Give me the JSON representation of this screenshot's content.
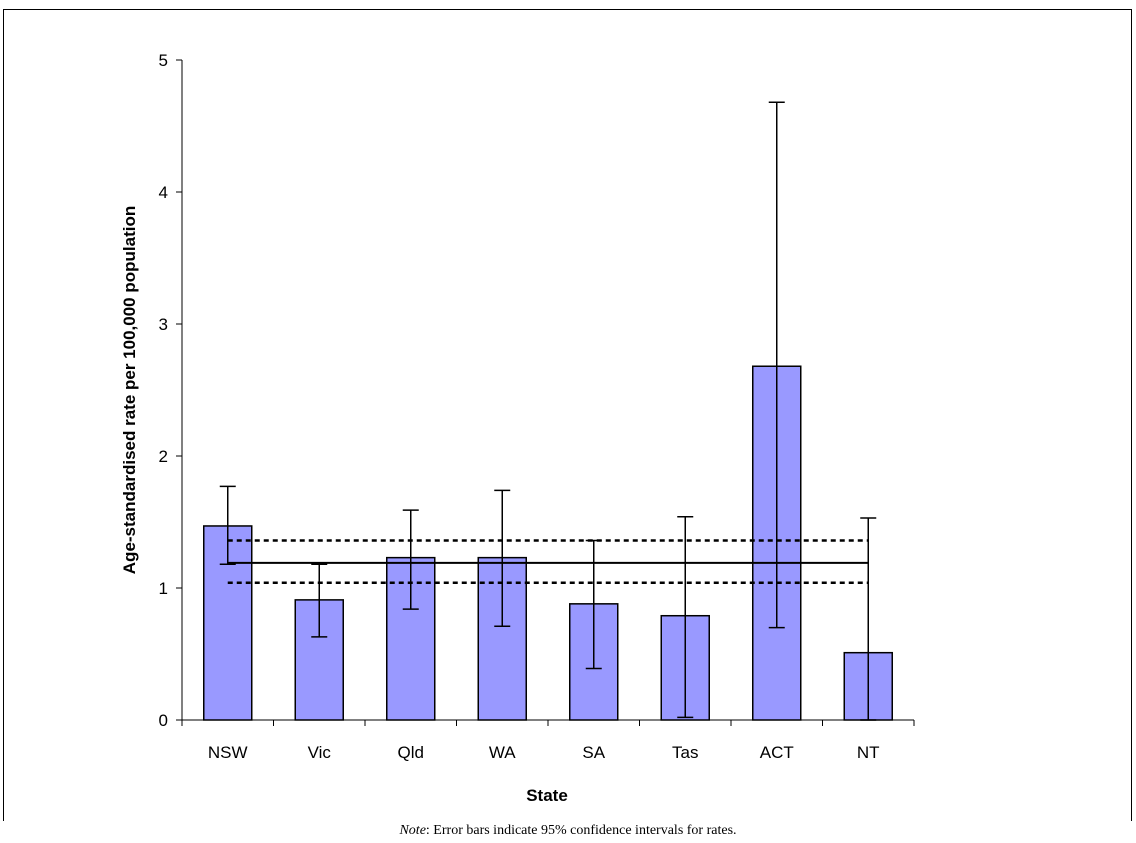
{
  "chart_data": {
    "type": "bar",
    "xlabel": "State",
    "ylabel": "Age-standardised rate per 100,000 population",
    "categories": [
      "NSW",
      "Vic",
      "Qld",
      "WA",
      "SA",
      "Tas",
      "ACT",
      "NT"
    ],
    "values": [
      1.47,
      0.91,
      1.23,
      1.23,
      0.88,
      0.79,
      2.68,
      0.51
    ],
    "error_low": [
      1.18,
      0.63,
      0.84,
      0.71,
      0.39,
      0.02,
      0.7,
      0.0
    ],
    "error_high": [
      1.77,
      1.18,
      1.59,
      1.74,
      1.36,
      1.54,
      4.68,
      1.53
    ],
    "reference_line": 1.19,
    "reference_ci": [
      1.04,
      1.36
    ],
    "ylim": [
      0,
      5
    ],
    "yticks": [
      0,
      1,
      2,
      3,
      4,
      5
    ],
    "grid": false,
    "bar_color": "#9999ff"
  },
  "note": {
    "label": "Note",
    "text": ":  Error bars indicate 95% confidence intervals for rates."
  }
}
